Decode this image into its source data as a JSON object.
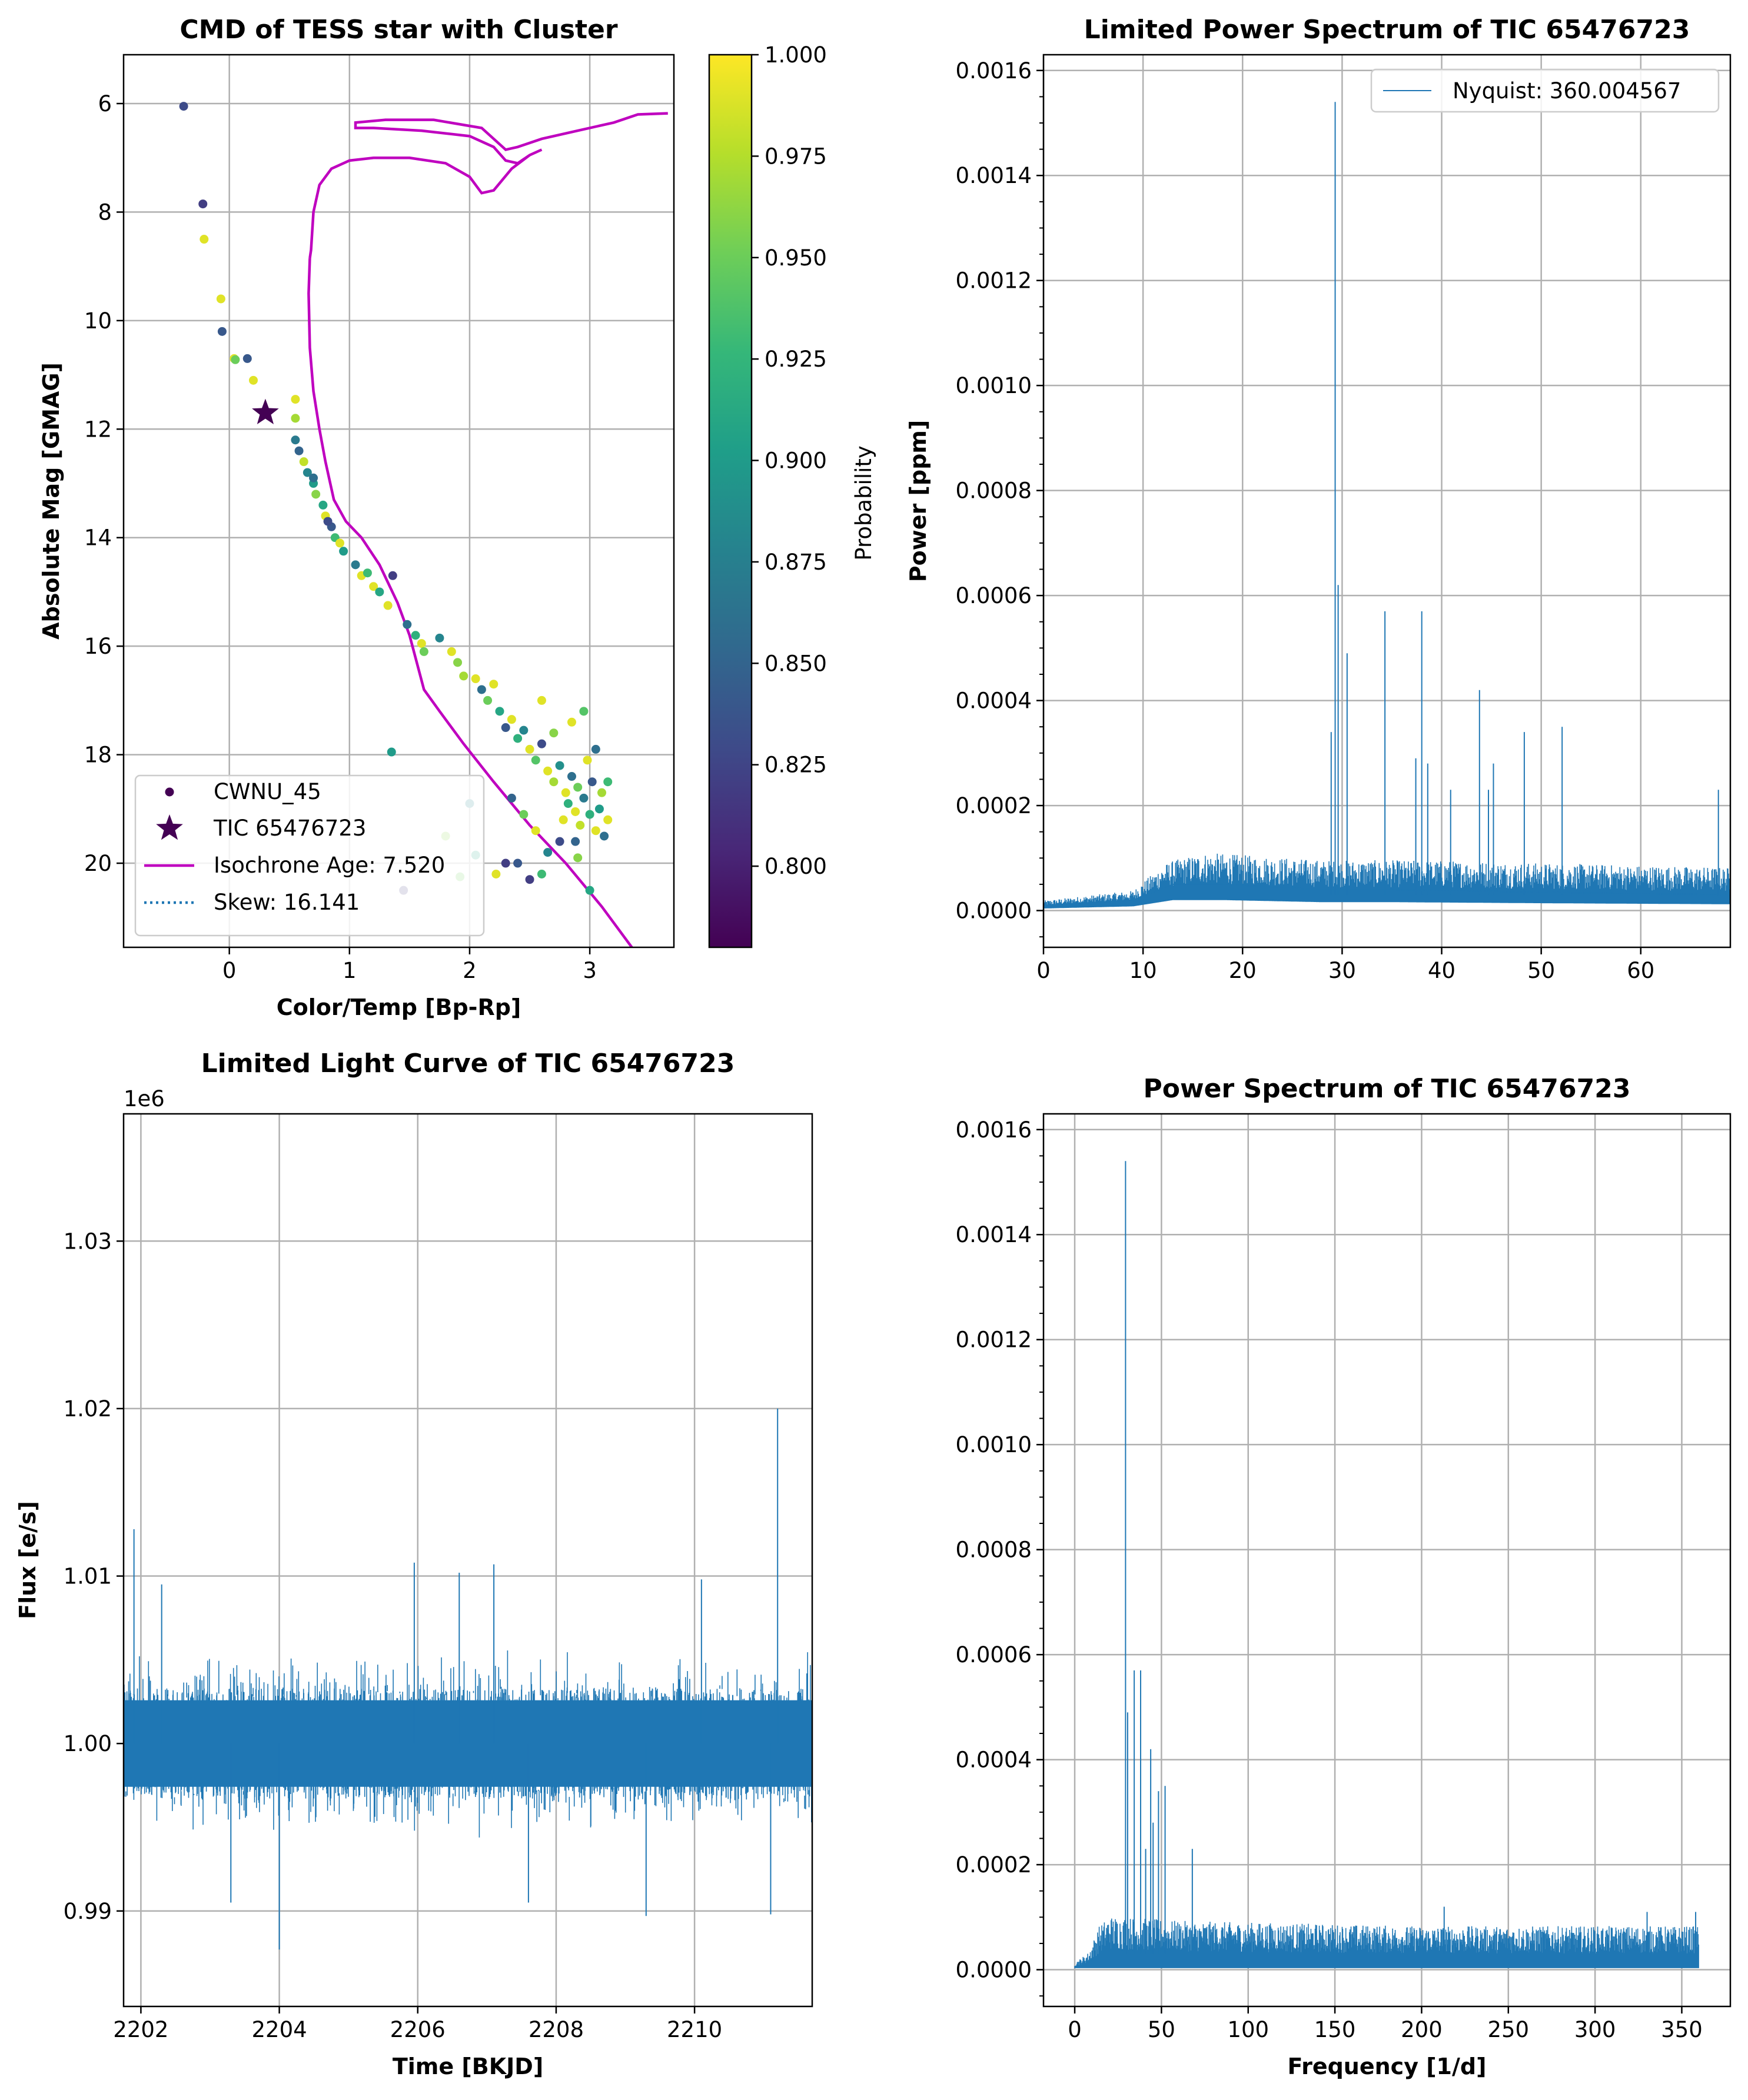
{
  "chart_data": [
    {
      "type": "scatter",
      "title": "CMD of TESS star with Cluster",
      "xlabel": "Color/Temp [Bp-Rp]",
      "ylabel": "Absolute Mag [GMAG]",
      "xlim": [
        -0.88,
        3.7
      ],
      "ylim": [
        21.55,
        5.1
      ],
      "y_inverted": true,
      "xticks": [
        0,
        1,
        2,
        3
      ],
      "yticks": [
        6,
        8,
        10,
        12,
        14,
        16,
        18,
        20
      ],
      "grid": true,
      "legend_position": "lower-left",
      "colorbar": {
        "label": "Probability",
        "colormap": "viridis",
        "range": [
          0.78,
          1.0
        ],
        "ticks": [
          "1.000",
          "0.975",
          "0.950",
          "0.925",
          "0.900",
          "0.875",
          "0.850",
          "0.825",
          "0.800"
        ]
      },
      "legend": [
        {
          "label": "CWNU_45",
          "marker": "dot",
          "color": "#440154"
        },
        {
          "label": "TIC 65476723",
          "marker": "star",
          "color": "#440154"
        },
        {
          "label": "Isochrone Age: 7.520",
          "marker": "line",
          "color": "#bf00bf"
        },
        {
          "label": "Skew: 16.141",
          "marker": "dotted-line",
          "color": "#1f77b4"
        }
      ],
      "target_star": {
        "x": 0.3,
        "y": 11.7,
        "prob": 0.78
      },
      "cluster_points": [
        [
          -0.38,
          6.05,
          0.83
        ],
        [
          -0.22,
          7.85,
          0.82
        ],
        [
          -0.21,
          8.5,
          0.99
        ],
        [
          -0.07,
          9.6,
          0.99
        ],
        [
          -0.06,
          10.2,
          0.84
        ],
        [
          0.04,
          10.7,
          0.99
        ],
        [
          0.05,
          10.72,
          0.95
        ],
        [
          0.15,
          10.7,
          0.84
        ],
        [
          0.2,
          11.1,
          0.99
        ],
        [
          0.55,
          11.45,
          0.99
        ],
        [
          0.55,
          11.8,
          0.97
        ],
        [
          0.55,
          12.2,
          0.87
        ],
        [
          0.58,
          12.4,
          0.85
        ],
        [
          0.62,
          12.6,
          0.98
        ],
        [
          0.65,
          12.8,
          0.88
        ],
        [
          0.7,
          13.0,
          0.9
        ],
        [
          0.72,
          13.2,
          0.96
        ],
        [
          0.78,
          13.4,
          0.91
        ],
        [
          0.8,
          13.6,
          0.99
        ],
        [
          0.85,
          13.8,
          0.84
        ],
        [
          0.88,
          14.0,
          0.93
        ],
        [
          0.92,
          14.1,
          0.99
        ],
        [
          0.95,
          14.25,
          0.9
        ],
        [
          0.7,
          12.9,
          0.86
        ],
        [
          0.82,
          13.7,
          0.83
        ],
        [
          1.05,
          14.5,
          0.87
        ],
        [
          1.1,
          14.7,
          0.99
        ],
        [
          1.15,
          14.65,
          0.93
        ],
        [
          1.2,
          14.9,
          0.99
        ],
        [
          1.25,
          15.0,
          0.91
        ],
        [
          1.32,
          15.25,
          0.99
        ],
        [
          1.36,
          14.7,
          0.82
        ],
        [
          1.35,
          17.95,
          0.9
        ],
        [
          1.48,
          15.6,
          0.86
        ],
        [
          1.55,
          15.8,
          0.92
        ],
        [
          1.6,
          15.95,
          0.99
        ],
        [
          1.62,
          16.1,
          0.95
        ],
        [
          1.75,
          15.85,
          0.88
        ],
        [
          1.85,
          16.1,
          0.99
        ],
        [
          1.9,
          16.3,
          0.96
        ],
        [
          1.95,
          16.55,
          0.97
        ],
        [
          2.05,
          16.6,
          0.99
        ],
        [
          2.1,
          16.8,
          0.86
        ],
        [
          2.15,
          17.0,
          0.95
        ],
        [
          2.2,
          16.7,
          0.99
        ],
        [
          2.25,
          17.2,
          0.91
        ],
        [
          2.3,
          17.5,
          0.84
        ],
        [
          2.35,
          17.35,
          0.99
        ],
        [
          2.4,
          17.7,
          0.92
        ],
        [
          2.45,
          17.55,
          0.88
        ],
        [
          2.5,
          17.9,
          0.99
        ],
        [
          2.55,
          18.1,
          0.94
        ],
        [
          2.6,
          17.8,
          0.83
        ],
        [
          2.65,
          18.3,
          0.99
        ],
        [
          2.7,
          18.5,
          0.97
        ],
        [
          2.75,
          18.2,
          0.89
        ],
        [
          2.8,
          18.7,
          0.99
        ],
        [
          2.82,
          18.9,
          0.92
        ],
        [
          2.85,
          18.4,
          0.86
        ],
        [
          2.88,
          19.05,
          0.99
        ],
        [
          2.9,
          18.6,
          0.95
        ],
        [
          2.92,
          19.3,
          0.98
        ],
        [
          2.95,
          18.8,
          0.87
        ],
        [
          2.98,
          18.1,
          0.99
        ],
        [
          3.0,
          19.1,
          0.92
        ],
        [
          3.02,
          18.5,
          0.84
        ],
        [
          3.05,
          19.4,
          0.99
        ],
        [
          3.08,
          19.0,
          0.9
        ],
        [
          3.1,
          18.7,
          0.97
        ],
        [
          3.12,
          19.5,
          0.86
        ],
        [
          3.15,
          19.2,
          0.99
        ],
        [
          2.6,
          17.0,
          0.99
        ],
        [
          2.7,
          17.6,
          0.96
        ],
        [
          2.85,
          17.4,
          0.99
        ],
        [
          2.95,
          17.2,
          0.94
        ],
        [
          3.05,
          17.9,
          0.86
        ],
        [
          2.35,
          18.8,
          0.85
        ],
        [
          2.45,
          19.1,
          0.95
        ],
        [
          2.55,
          19.4,
          0.99
        ],
        [
          2.65,
          19.8,
          0.88
        ],
        [
          2.75,
          19.6,
          0.83
        ],
        [
          2.4,
          20.0,
          0.84
        ],
        [
          2.5,
          20.3,
          0.82
        ],
        [
          2.22,
          20.2,
          0.99
        ],
        [
          2.05,
          19.85,
          0.91
        ],
        [
          1.92,
          20.25,
          0.95
        ],
        [
          1.45,
          20.5,
          0.82
        ],
        [
          1.8,
          19.5,
          0.96
        ],
        [
          2.0,
          18.9,
          0.88
        ],
        [
          2.3,
          20.0,
          0.82
        ],
        [
          2.6,
          20.2,
          0.93
        ],
        [
          2.9,
          19.9,
          0.96
        ],
        [
          3.0,
          20.5,
          0.91
        ],
        [
          2.78,
          19.2,
          0.99
        ],
        [
          2.88,
          19.6,
          0.85
        ],
        [
          3.15,
          18.5,
          0.93
        ]
      ],
      "isochrone_points": [
        [
          0.67,
          8.85
        ],
        [
          0.68,
          8.7
        ],
        [
          0.7,
          8.0
        ],
        [
          0.75,
          7.5
        ],
        [
          0.85,
          7.2
        ],
        [
          1.0,
          7.05
        ],
        [
          1.2,
          7.0
        ],
        [
          1.5,
          7.0
        ],
        [
          1.8,
          7.1
        ],
        [
          2.0,
          7.35
        ],
        [
          2.1,
          7.65
        ],
        [
          2.2,
          7.6
        ],
        [
          2.35,
          7.2
        ],
        [
          2.5,
          6.95
        ],
        [
          2.6,
          6.85
        ],
        [
          2.5,
          6.95
        ],
        [
          2.4,
          7.1
        ],
        [
          2.3,
          7.05
        ],
        [
          2.2,
          6.8
        ],
        [
          2.0,
          6.6
        ],
        [
          1.6,
          6.5
        ],
        [
          1.2,
          6.45
        ],
        [
          1.05,
          6.45
        ],
        [
          1.05,
          6.35
        ],
        [
          1.3,
          6.3
        ],
        [
          1.7,
          6.3
        ],
        [
          2.1,
          6.45
        ],
        [
          2.3,
          6.85
        ],
        [
          2.4,
          6.8
        ],
        [
          2.6,
          6.65
        ],
        [
          2.9,
          6.5
        ],
        [
          3.2,
          6.35
        ],
        [
          3.4,
          6.2
        ],
        [
          3.65,
          6.18
        ]
      ],
      "isochrone_lower_points": [
        [
          0.67,
          8.85
        ],
        [
          0.66,
          9.5
        ],
        [
          0.67,
          10.5
        ],
        [
          0.7,
          11.3
        ],
        [
          0.75,
          12.0
        ],
        [
          0.8,
          12.6
        ],
        [
          0.87,
          13.3
        ],
        [
          0.97,
          13.7
        ],
        [
          1.1,
          14.0
        ],
        [
          1.25,
          14.5
        ],
        [
          1.4,
          15.2
        ],
        [
          1.5,
          15.8
        ],
        [
          1.62,
          16.8
        ],
        [
          1.75,
          17.2
        ],
        [
          1.95,
          17.8
        ],
        [
          2.2,
          18.5
        ],
        [
          2.5,
          19.3
        ],
        [
          2.8,
          20.0
        ],
        [
          3.1,
          20.8
        ],
        [
          3.35,
          21.55
        ]
      ]
    },
    {
      "type": "line",
      "title": "Limited Power Spectrum of TIC 65476723",
      "xlabel": "",
      "ylabel": "Power [ppm]",
      "xlim": [
        0,
        69
      ],
      "ylim": [
        -7e-05,
        0.00163
      ],
      "xticks": [
        0,
        10,
        20,
        30,
        40,
        50,
        60
      ],
      "yticks": [
        "0.0000",
        "0.0002",
        "0.0004",
        "0.0006",
        "0.0008",
        "0.0010",
        "0.0012",
        "0.0014",
        "0.0016"
      ],
      "grid": true,
      "legend_position": "top-right",
      "legend": [
        {
          "label": "Nyquist: 360.004567",
          "color": "#1f77b4"
        }
      ],
      "baseline": [
        [
          0,
          1e-05
        ],
        [
          9,
          2e-05
        ],
        [
          13,
          5e-05
        ],
        [
          18,
          5e-05
        ],
        [
          28,
          4e-05
        ],
        [
          35,
          4e-05
        ],
        [
          50,
          3.5e-05
        ],
        [
          69,
          3e-05
        ]
      ],
      "noise_band": [
        [
          0,
          1.5e-05
        ],
        [
          9,
          3e-05
        ],
        [
          12,
          7e-05
        ],
        [
          16,
          9e-05
        ],
        [
          28,
          8e-05
        ],
        [
          40,
          8e-05
        ],
        [
          69,
          7e-05
        ]
      ],
      "peaks": [
        [
          28.9,
          0.00034
        ],
        [
          29.3,
          0.00154
        ],
        [
          29.6,
          0.00062
        ],
        [
          30.5,
          0.00049
        ],
        [
          34.3,
          0.00057
        ],
        [
          37.4,
          0.00029
        ],
        [
          38.0,
          0.00057
        ],
        [
          38.6,
          0.00028
        ],
        [
          40.9,
          0.00023
        ],
        [
          43.8,
          0.00042
        ],
        [
          44.7,
          0.00023
        ],
        [
          45.2,
          0.00028
        ],
        [
          48.3,
          0.00034
        ],
        [
          52.1,
          0.00035
        ],
        [
          67.8,
          0.00023
        ]
      ]
    },
    {
      "type": "line",
      "title": "Limited Light Curve of TIC 65476723",
      "xlabel": "Time [BKJD]",
      "ylabel": "Flux [e/s]",
      "offset_text": "1e6",
      "xlim": [
        2201.75,
        2211.7
      ],
      "ylim": [
        0.9843,
        1.0376
      ],
      "xticks": [
        2202,
        2204,
        2206,
        2208,
        2210
      ],
      "yticks": [
        "0.99",
        "1.00",
        "1.01",
        "1.02",
        "1.03"
      ],
      "grid": true,
      "center_value": 1.0,
      "band_halfwidth": 0.0047,
      "spikes": [
        [
          2201.9,
          1.0128
        ],
        [
          2202.3,
          1.0095
        ],
        [
          2203.3,
          0.9905
        ],
        [
          2204.0,
          0.9877
        ],
        [
          2205.95,
          1.0108
        ],
        [
          2206.6,
          1.0102
        ],
        [
          2207.1,
          1.0107
        ],
        [
          2207.6,
          0.9905
        ],
        [
          2209.3,
          0.9897
        ],
        [
          2210.1,
          1.0098
        ],
        [
          2211.2,
          1.02
        ],
        [
          2211.1,
          0.9898
        ]
      ]
    },
    {
      "type": "line",
      "title": "Power Spectrum of TIC 65476723",
      "xlabel": "Frequency [1/d]",
      "ylabel": "",
      "xlim": [
        -18,
        378
      ],
      "ylim": [
        -7e-05,
        0.00163
      ],
      "xticks": [
        0,
        50,
        100,
        150,
        200,
        250,
        300,
        350
      ],
      "yticks": [
        "0.0000",
        "0.0002",
        "0.0004",
        "0.0006",
        "0.0008",
        "0.0010",
        "0.0012",
        "0.0014",
        "0.0016"
      ],
      "grid": true,
      "x_max_data": 360,
      "noise_band": [
        [
          0,
          1e-05
        ],
        [
          8,
          3e-05
        ],
        [
          14,
          8e-05
        ],
        [
          20,
          0.0001
        ],
        [
          60,
          9e-05
        ],
        [
          200,
          8e-05
        ],
        [
          360,
          8e-05
        ]
      ],
      "peaks": [
        [
          29.3,
          0.00154
        ],
        [
          30.5,
          0.00049
        ],
        [
          34.3,
          0.00057
        ],
        [
          38.0,
          0.00057
        ],
        [
          40.9,
          0.00023
        ],
        [
          43.8,
          0.00042
        ],
        [
          45.2,
          0.00028
        ],
        [
          48.3,
          0.00034
        ],
        [
          52.1,
          0.00035
        ],
        [
          67.8,
          0.00023
        ],
        [
          213,
          0.00012
        ],
        [
          330,
          0.00011
        ],
        [
          358,
          0.00011
        ]
      ]
    }
  ]
}
